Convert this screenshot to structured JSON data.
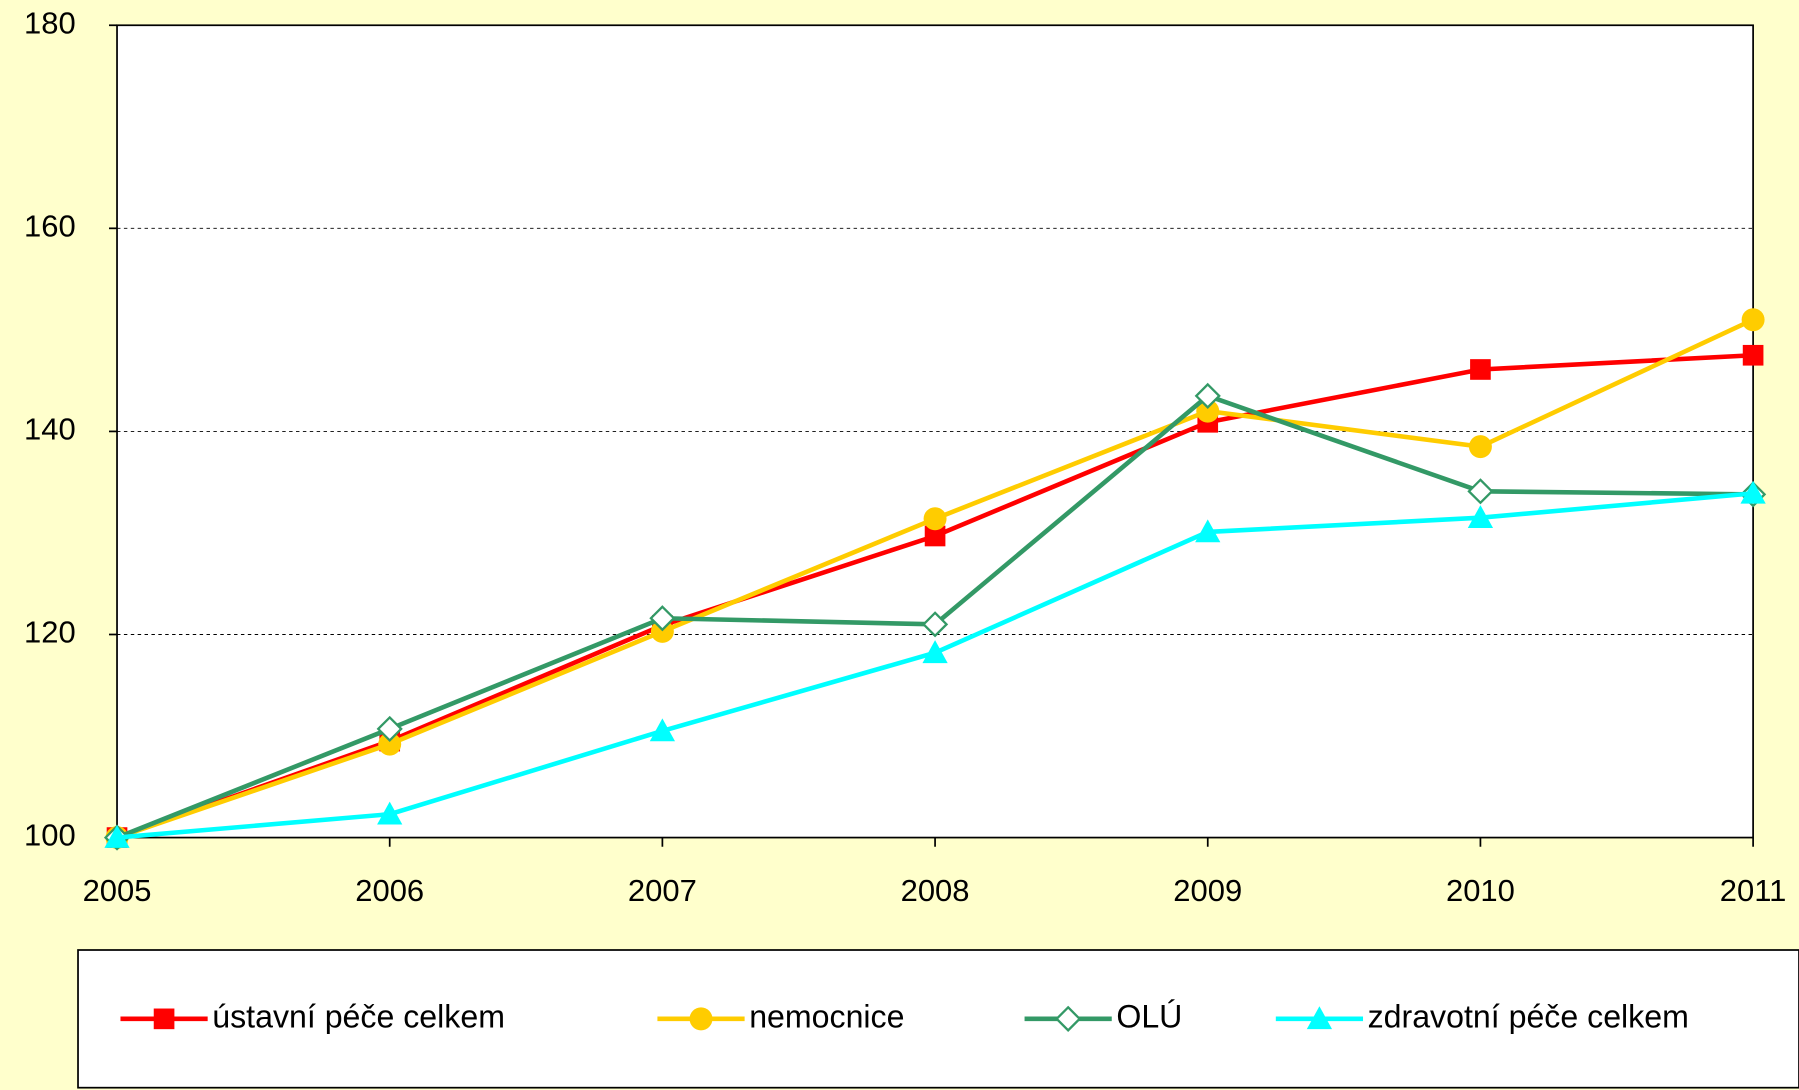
{
  "chart_data": {
    "type": "line",
    "categories": [
      "2005",
      "2006",
      "2007",
      "2008",
      "2009",
      "2010",
      "2011"
    ],
    "series": [
      {
        "name": "ústavní péče celkem",
        "color": "#FF0000",
        "marker": "square",
        "values": [
          100,
          109.5,
          120.9,
          129.7,
          140.9,
          146.1,
          147.5
        ]
      },
      {
        "name": "nemocnice",
        "color": "#FFCC00",
        "marker": "circle",
        "values": [
          100,
          109.2,
          120.3,
          131.4,
          142.0,
          138.5,
          151.0
        ]
      },
      {
        "name": "OLÚ",
        "color": "#339966",
        "marker": "diamond-open",
        "values": [
          100,
          110.7,
          121.6,
          121.0,
          143.5,
          134.1,
          133.8
        ]
      },
      {
        "name": "zdravotní péče celkem",
        "color": "#00FFFF",
        "marker": "triangle",
        "values": [
          100,
          102.3,
          110.5,
          118.2,
          130.1,
          131.5,
          133.9
        ]
      }
    ],
    "ylim": [
      100,
      180
    ],
    "yticks": [
      100,
      120,
      140,
      160,
      180
    ],
    "grid": true,
    "legend": "bottom"
  }
}
